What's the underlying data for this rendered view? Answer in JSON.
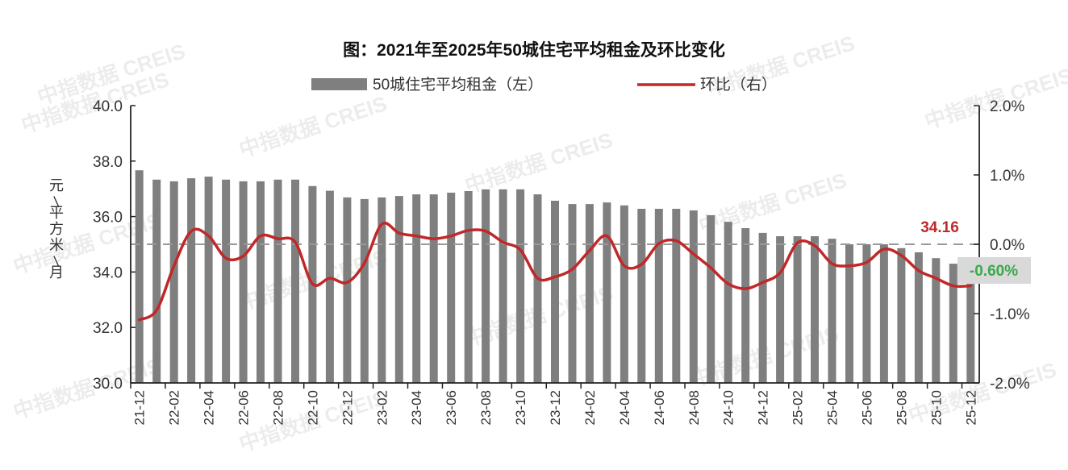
{
  "chart_data": {
    "type": "bar+line",
    "title": "图：2021年至2025年50城住宅平均租金及环比变化",
    "xlabel": "",
    "ylabel": "元/平方米/月",
    "ylabel_right": "",
    "legend": [
      {
        "name": "50城住宅平均租金（左）",
        "type": "bar",
        "color": "#7f7f7f",
        "axis": "left"
      },
      {
        "name": "环比（右）",
        "type": "line",
        "color": "#c0282a",
        "axis": "right"
      }
    ],
    "legend_position": "top",
    "grid": false,
    "ylim": [
      30.0,
      40.0
    ],
    "ylim_right": [
      -2.0,
      2.0
    ],
    "yticks_left": [
      "30.0",
      "32.0",
      "34.0",
      "36.0",
      "38.0",
      "40.0"
    ],
    "yticks_right": [
      "-2.0%",
      "-1.0%",
      "0.0%",
      "1.0%",
      "2.0%"
    ],
    "xtick_labels": [
      "21-12",
      "22-02",
      "22-04",
      "22-06",
      "22-08",
      "22-10",
      "22-12",
      "23-02",
      "23-04",
      "23-06",
      "23-08",
      "23-10",
      "23-12",
      "24-02",
      "24-04",
      "24-06",
      "24-08",
      "24-10",
      "24-12",
      "25-02",
      "25-04",
      "25-06",
      "25-08",
      "25-10",
      "25-12"
    ],
    "categories": [
      "21-12",
      "22-01",
      "22-02",
      "22-03",
      "22-04",
      "22-05",
      "22-06",
      "22-07",
      "22-08",
      "22-09",
      "22-10",
      "22-11",
      "22-12",
      "23-01",
      "23-02",
      "23-03",
      "23-04",
      "23-05",
      "23-06",
      "23-07",
      "23-08",
      "23-09",
      "23-10",
      "23-11",
      "23-12",
      "24-01",
      "24-02",
      "24-03",
      "24-04",
      "24-05",
      "24-06",
      "24-07",
      "24-08",
      "24-09",
      "24-10",
      "24-11",
      "24-12",
      "25-01",
      "25-02",
      "25-03",
      "25-04",
      "25-05",
      "25-06",
      "25-07",
      "25-08",
      "25-09",
      "25-10",
      "25-11",
      "25-12"
    ],
    "series": [
      {
        "name": "50城住宅平均租金（左）",
        "type": "bar",
        "axis": "left",
        "unit": "元/平方米/月",
        "values": [
          37.67,
          37.33,
          37.27,
          37.38,
          37.44,
          37.33,
          37.27,
          37.27,
          37.33,
          37.33,
          37.1,
          36.93,
          36.69,
          36.63,
          36.69,
          36.74,
          36.8,
          36.8,
          36.86,
          36.92,
          36.98,
          36.98,
          36.98,
          36.8,
          36.57,
          36.45,
          36.45,
          36.51,
          36.4,
          36.28,
          36.28,
          36.28,
          36.22,
          36.05,
          35.81,
          35.58,
          35.41,
          35.29,
          35.29,
          35.29,
          35.2,
          35.0,
          35.0,
          35.0,
          34.86,
          34.71,
          34.5,
          34.3,
          34.16
        ]
      },
      {
        "name": "环比（右）",
        "type": "line",
        "axis": "right",
        "unit": "%",
        "values": [
          -1.09,
          -0.95,
          -0.31,
          0.19,
          0.12,
          -0.2,
          -0.17,
          0.12,
          0.08,
          0.03,
          -0.57,
          -0.49,
          -0.55,
          -0.27,
          0.29,
          0.16,
          0.12,
          0.08,
          0.12,
          0.2,
          0.19,
          0.03,
          -0.08,
          -0.49,
          -0.47,
          -0.36,
          -0.09,
          0.12,
          -0.31,
          -0.29,
          0.01,
          0.05,
          -0.14,
          -0.34,
          -0.57,
          -0.64,
          -0.55,
          -0.41,
          0.02,
          -0.02,
          -0.28,
          -0.31,
          -0.26,
          -0.07,
          -0.16,
          -0.38,
          -0.49,
          -0.6,
          -0.6
        ]
      }
    ],
    "annotations": [
      {
        "text": "34.16",
        "color": "#c0282a",
        "refers_to": "last bar value"
      },
      {
        "text": "-0.60%",
        "color": "#3aaa4a",
        "background": "#d9d9d9",
        "refers_to": "last MoM value"
      }
    ],
    "reference_line": {
      "axis": "right",
      "value": 0.0,
      "style": "dashed",
      "color": "#999999"
    }
  },
  "watermark": "中指数据 CREIS",
  "colors": {
    "bar": "#7f7f7f",
    "line": "#c0282a",
    "annotation_value": "#c0282a",
    "annotation_pct": "#3aaa4a",
    "annotation_box": "#d9d9d9",
    "axis": "#222222"
  }
}
